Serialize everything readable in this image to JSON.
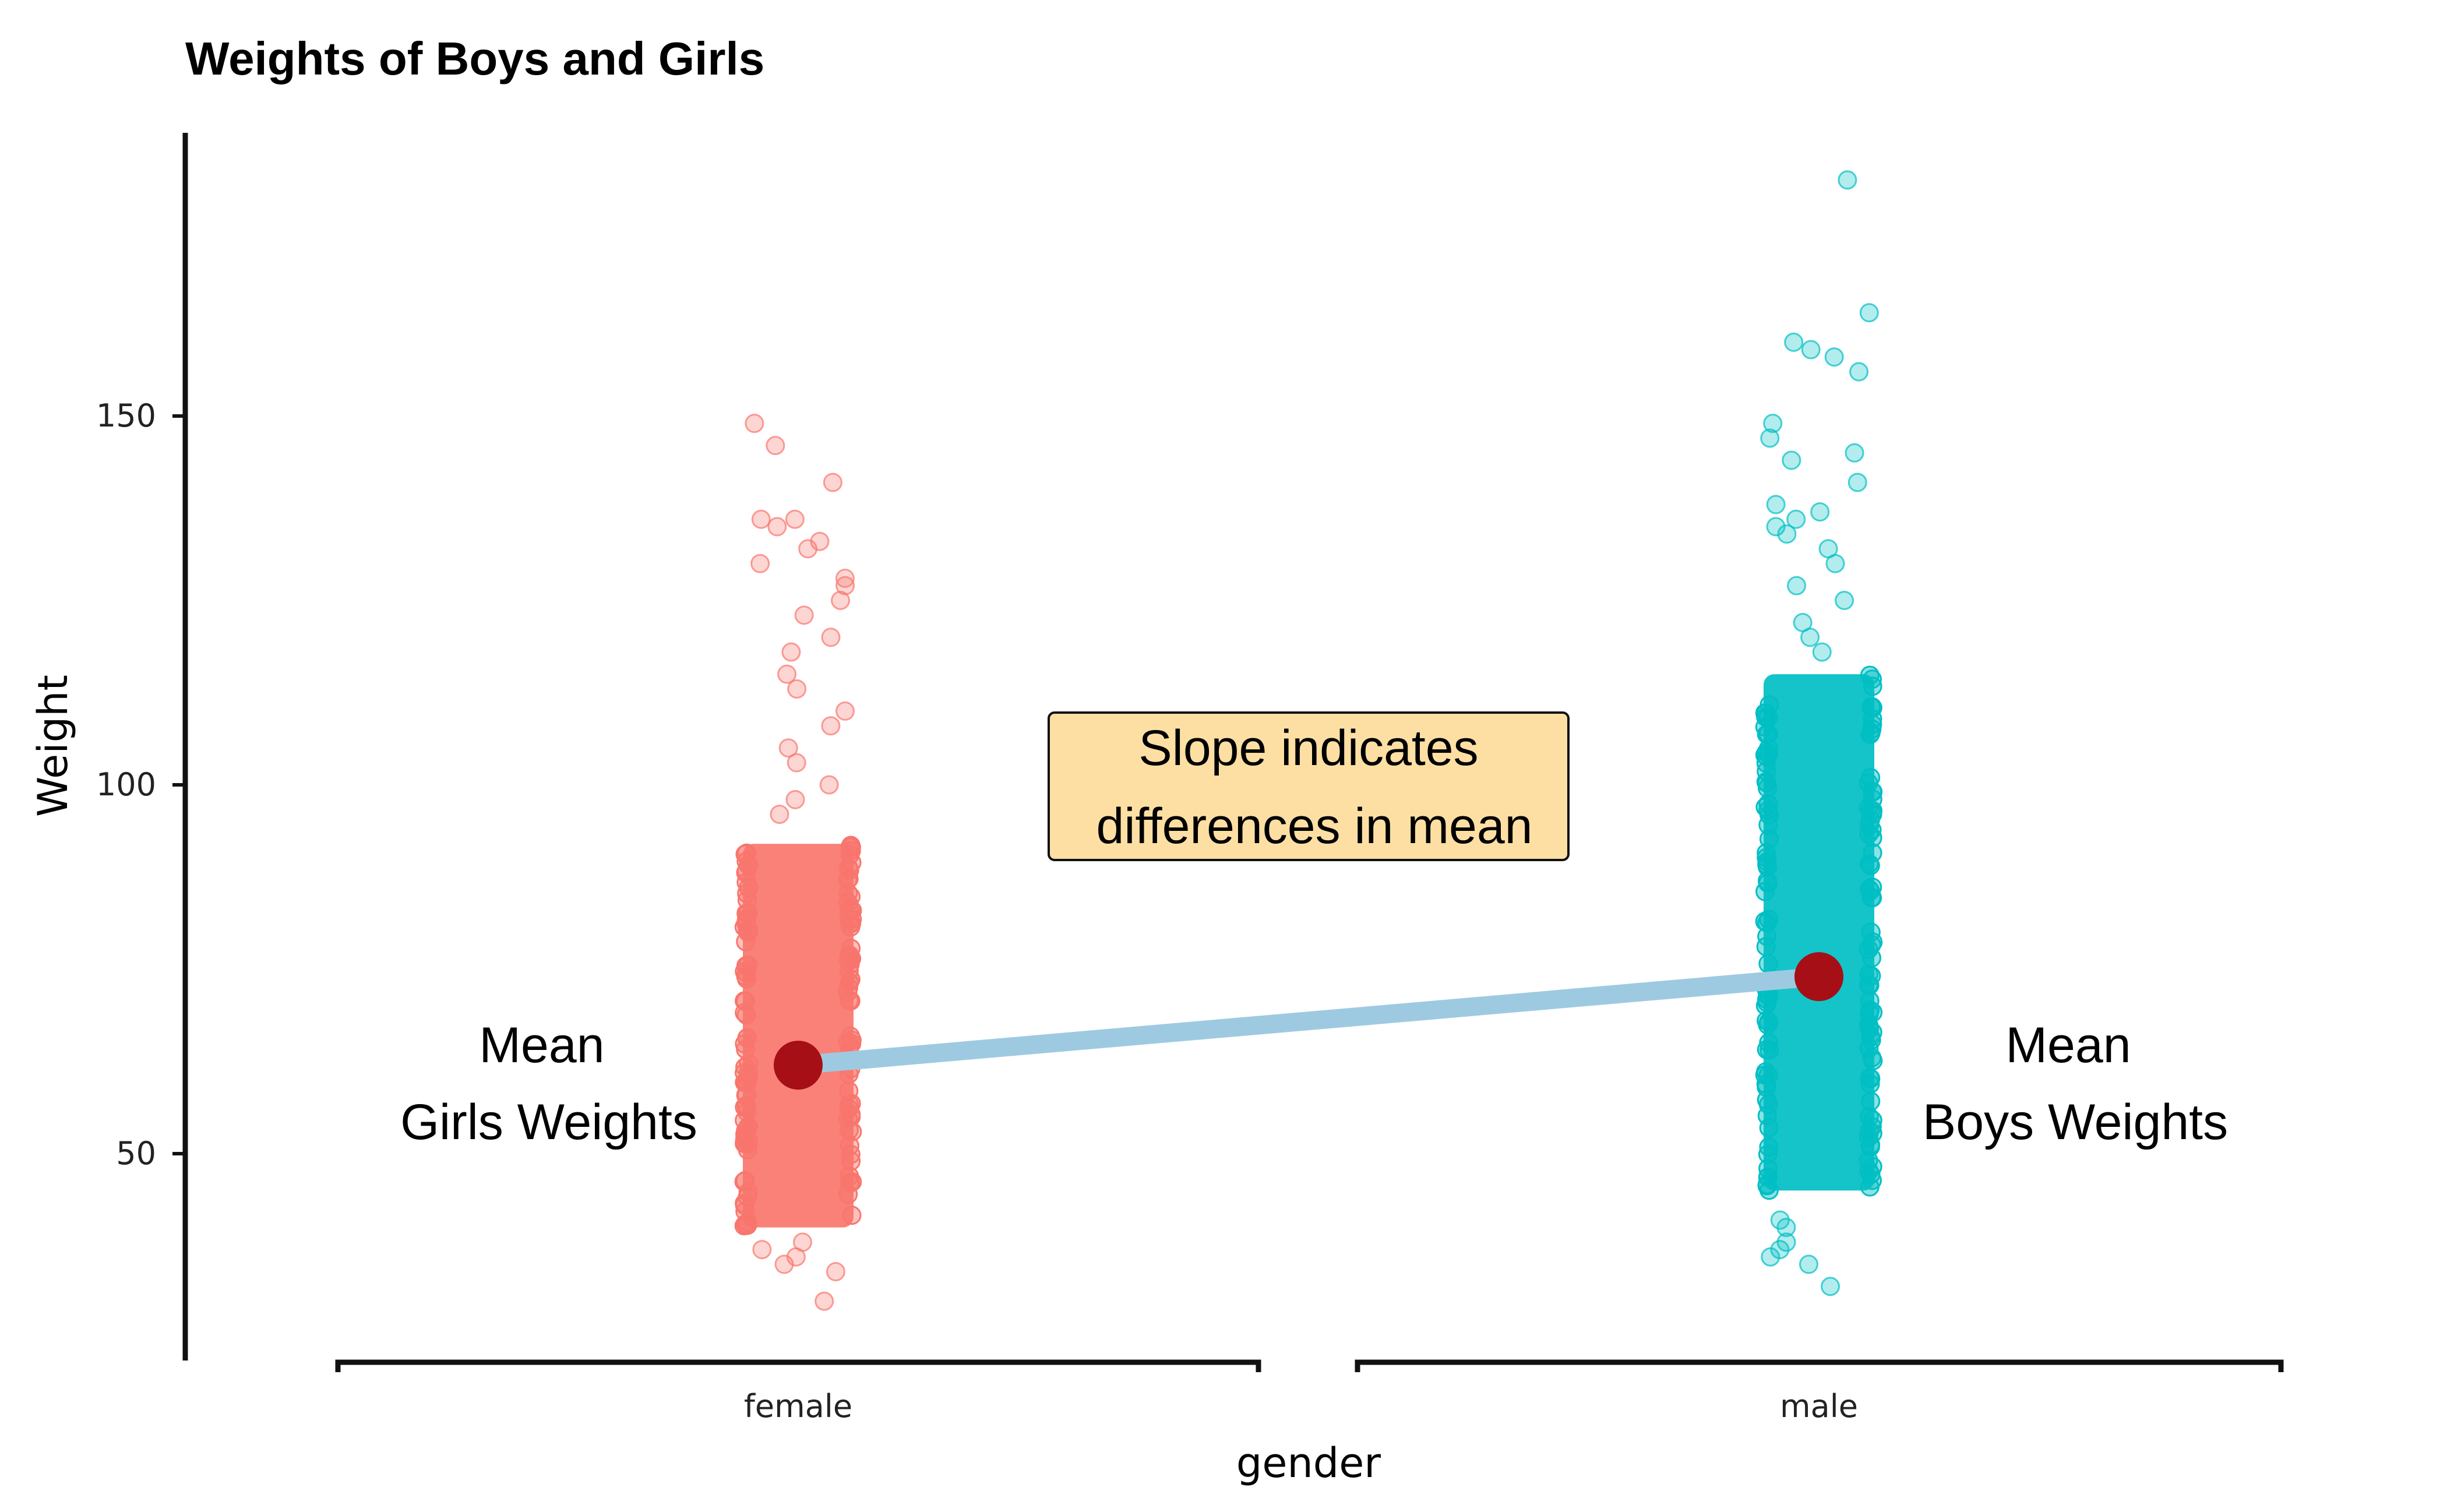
{
  "chart_data": {
    "type": "scatter",
    "title": "Weights of Boys and Girls",
    "xlabel": "gender",
    "ylabel": "Weight",
    "categories": [
      "female",
      "male"
    ],
    "ylim": [
      25,
      190
    ],
    "yticks": [
      50,
      100,
      150
    ],
    "grid": false,
    "legend": "none",
    "series": [
      {
        "category": "female",
        "color": "#F8766D",
        "style": "jittered points",
        "bulk_range": [
          40,
          92
        ],
        "scattered_points": [
          30,
          34,
          35,
          36,
          37,
          38,
          96,
          98,
          100,
          103,
          105,
          108,
          110,
          113,
          115,
          118,
          120,
          123,
          125,
          127,
          128,
          130,
          132,
          133,
          135,
          136,
          136,
          141,
          146,
          149
        ],
        "mean": 62
      },
      {
        "category": "male",
        "color": "#00BFC4",
        "style": "jittered points",
        "bulk_range": [
          45,
          115
        ],
        "scattered_points": [
          32,
          35,
          36,
          37,
          38,
          40,
          41,
          118,
          120,
          122,
          125,
          127,
          130,
          132,
          134,
          135,
          136,
          137,
          138,
          141,
          144,
          145,
          147,
          149,
          156,
          158,
          159,
          160,
          164,
          182
        ],
        "mean": 74
      }
    ],
    "mean_line": {
      "from": [
        "female",
        62
      ],
      "to": [
        "male",
        74
      ],
      "color": "#9ECAE1",
      "point_color": "#A50F15"
    },
    "annotations": {
      "slope_box_line1": "Slope indicates",
      "slope_box_line2": "differences in mean",
      "slope_box_fill": "#FDDFA4",
      "girls_line1": "Mean",
      "girls_line2": "Girls Weights",
      "boys_line1": "Mean",
      "boys_line2": "Boys Weights"
    }
  }
}
